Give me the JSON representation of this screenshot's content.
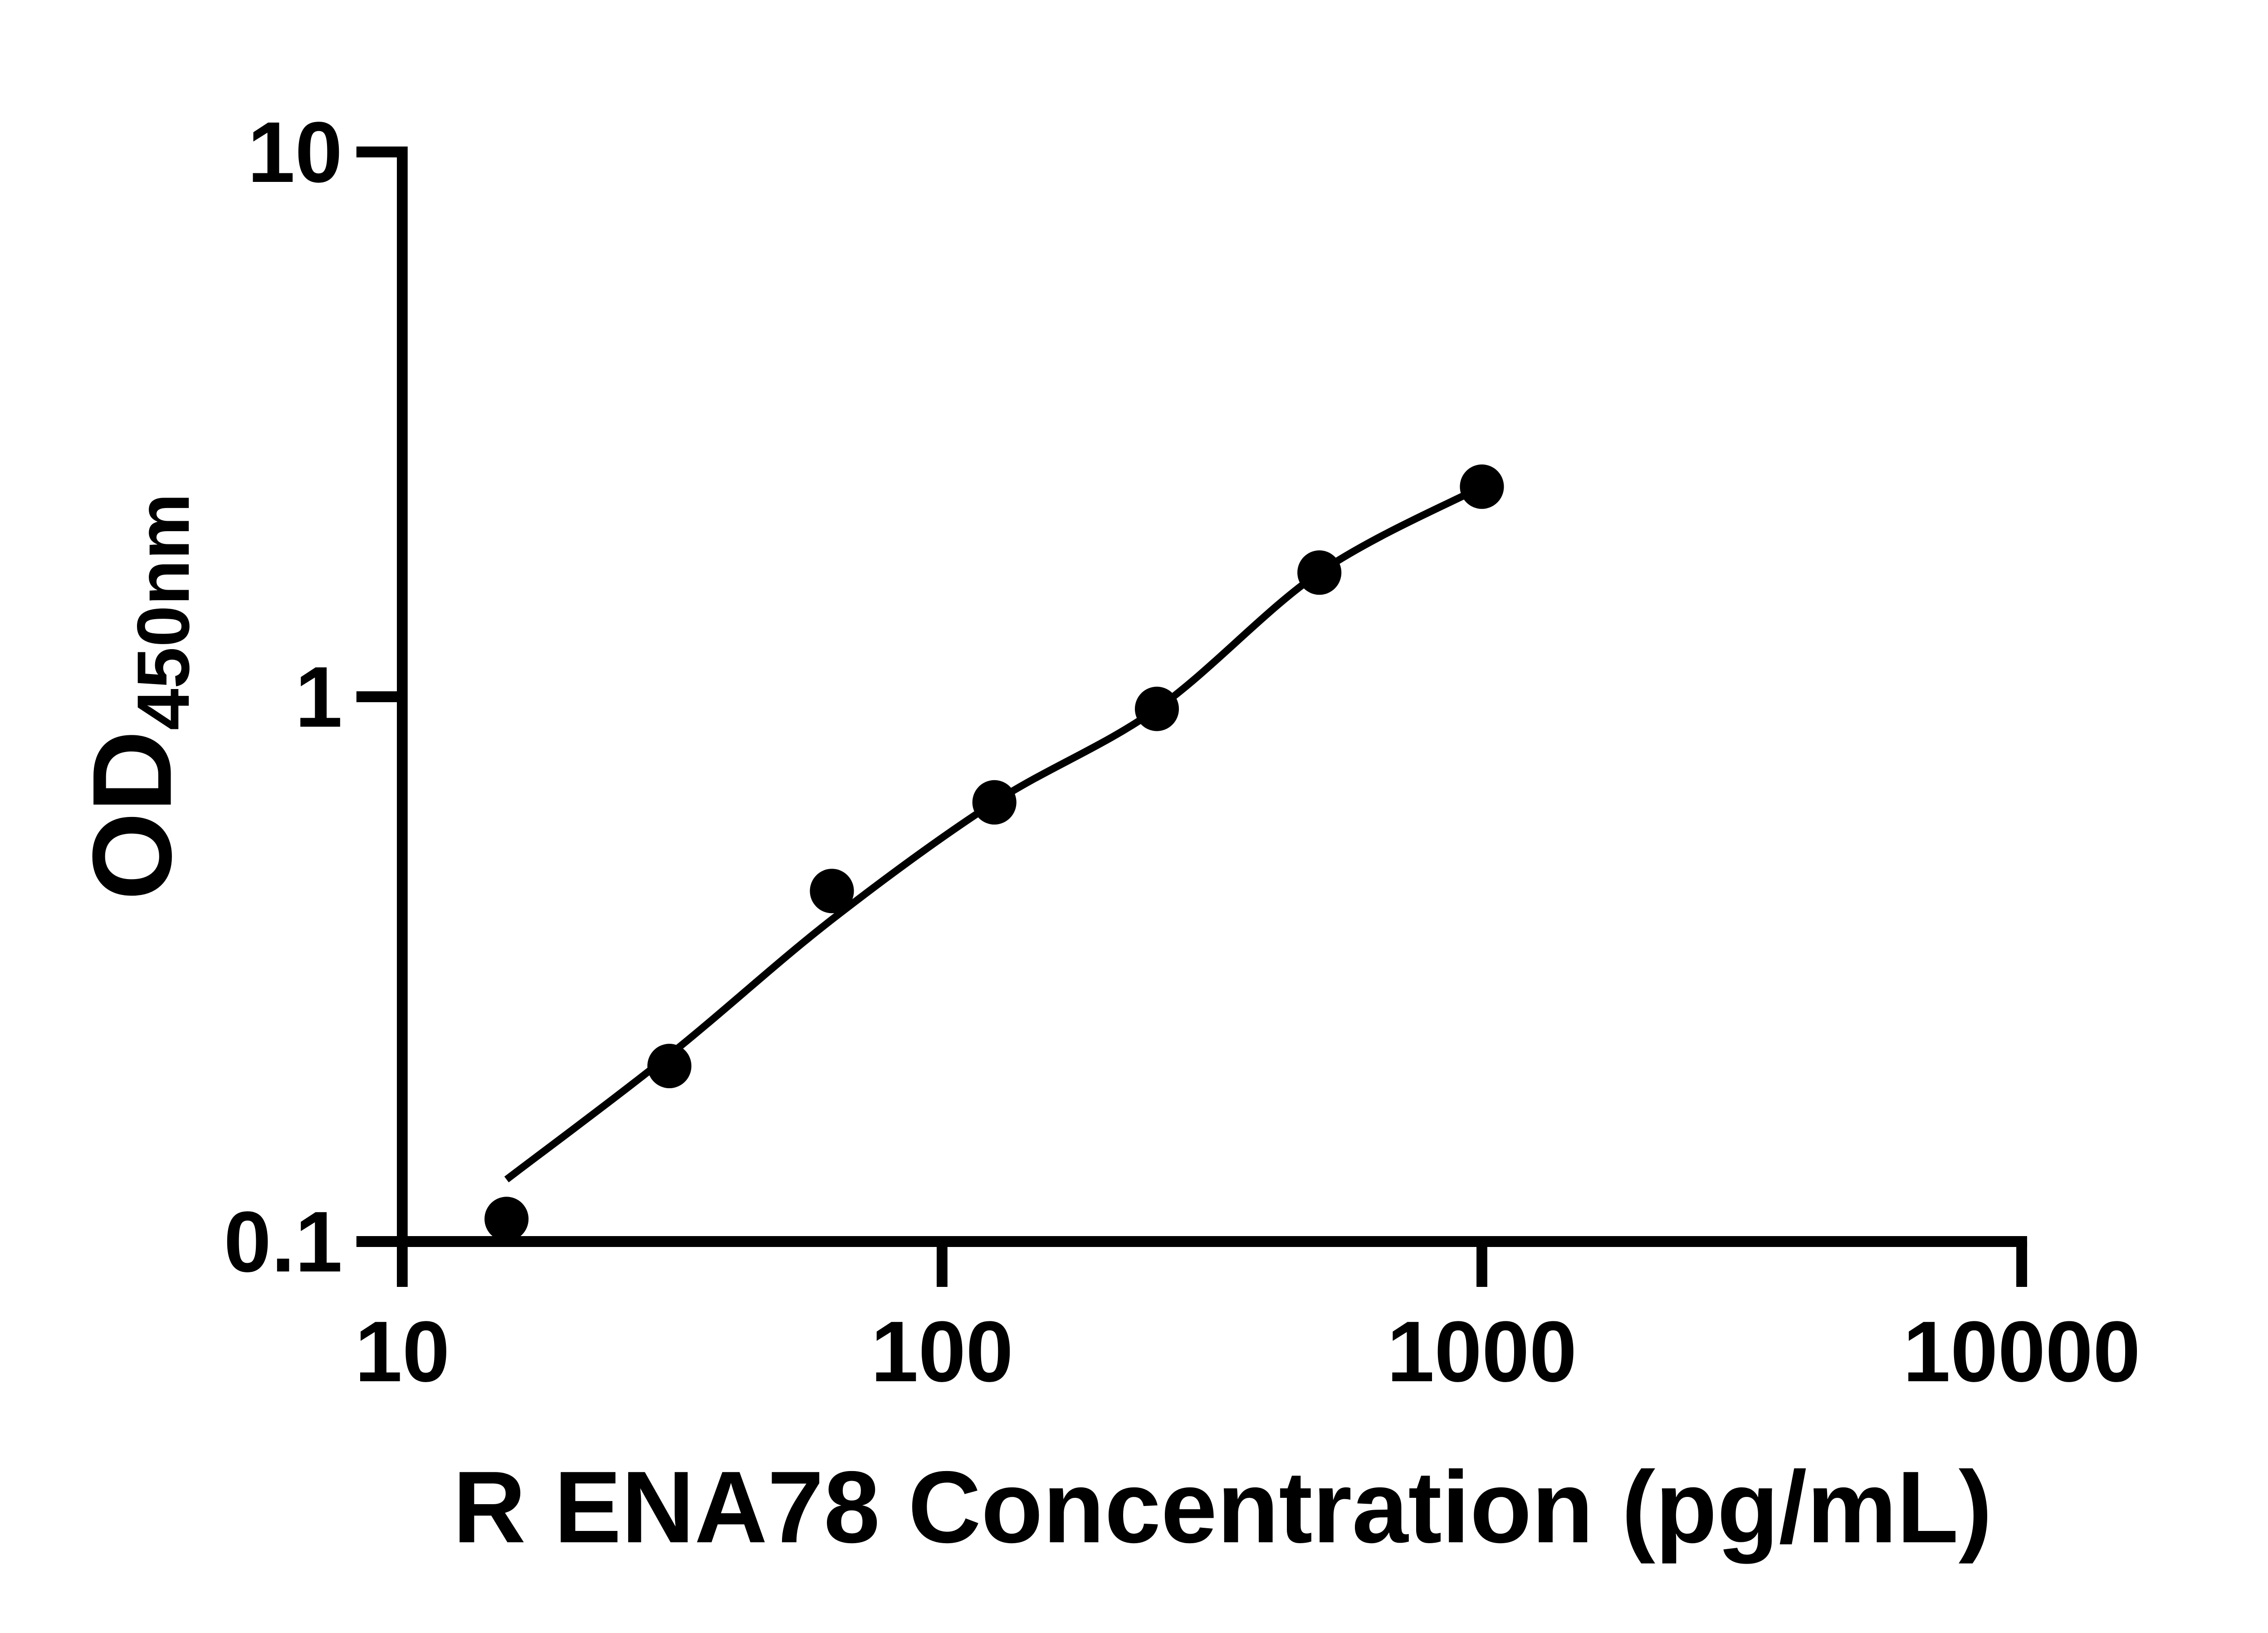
{
  "figure": {
    "background_color": "#ffffff",
    "ink_color": "#000000"
  },
  "chart_data": {
    "type": "scatter",
    "title": "",
    "xlabel": "R ENA78 Concentration (pg/mL)",
    "ylabel_main": "OD",
    "ylabel_sub": "450nm",
    "x_scale": "log",
    "y_scale": "log",
    "xlim": [
      10,
      10000
    ],
    "ylim": [
      0.1,
      10
    ],
    "x_ticks": [
      10,
      100,
      1000,
      10000
    ],
    "x_tick_labels": [
      "10",
      "100",
      "1000",
      "10000"
    ],
    "y_ticks": [
      10,
      1,
      0.1
    ],
    "y_tick_labels": [
      "10",
      "1",
      "0.1"
    ],
    "grid": false,
    "legend": "none",
    "series": [
      {
        "name": "standard-points",
        "marker": "filled-circle",
        "color": "#000000",
        "x": [
          15.6,
          31.25,
          62.5,
          125,
          250,
          500,
          1000
        ],
        "y": [
          0.11,
          0.21,
          0.44,
          0.64,
          0.95,
          1.69,
          2.43
        ]
      }
    ],
    "fit_curve": {
      "name": "standard-curve-fit",
      "color": "#000000",
      "x": [
        15.6,
        31.25,
        62.5,
        125,
        250,
        500,
        1000
      ],
      "y": [
        0.13,
        0.22,
        0.39,
        0.64,
        0.95,
        1.69,
        2.43
      ]
    }
  }
}
